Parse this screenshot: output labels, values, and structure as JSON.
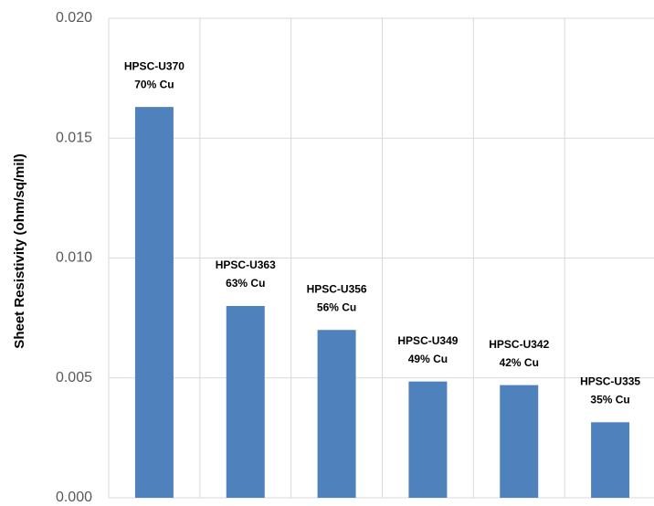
{
  "chart_data": {
    "type": "bar",
    "categories": [
      "HPSC-U370",
      "HPSC-U363",
      "HPSC-U356",
      "HPSC-U349",
      "HPSC-U342",
      "HPSC-U335"
    ],
    "values": [
      0.0163,
      0.008,
      0.007,
      0.00485,
      0.0047,
      0.00315
    ],
    "data_labels": [
      {
        "line1": "HPSC-U370",
        "line2": "70% Cu"
      },
      {
        "line1": "HPSC-U363",
        "line2": "63% Cu"
      },
      {
        "line1": "HPSC-U356",
        "line2": "56% Cu"
      },
      {
        "line1": "HPSC-U349",
        "line2": "49% Cu"
      },
      {
        "line1": "HPSC-U342",
        "line2": "42% Cu"
      },
      {
        "line1": "HPSC-U335",
        "line2": "35% Cu"
      }
    ],
    "title": "",
    "xlabel": "",
    "ylabel": "Sheet Resistivity (ohm/sq/mil)",
    "ylim": [
      0,
      0.02
    ],
    "yticks": [
      "0.000",
      "0.005",
      "0.010",
      "0.015",
      "0.020"
    ],
    "grid": true,
    "legend": "none",
    "colors": {
      "bar": "#4f81bd",
      "grid": "#d9d9d9",
      "tick_text": "#595959"
    }
  }
}
